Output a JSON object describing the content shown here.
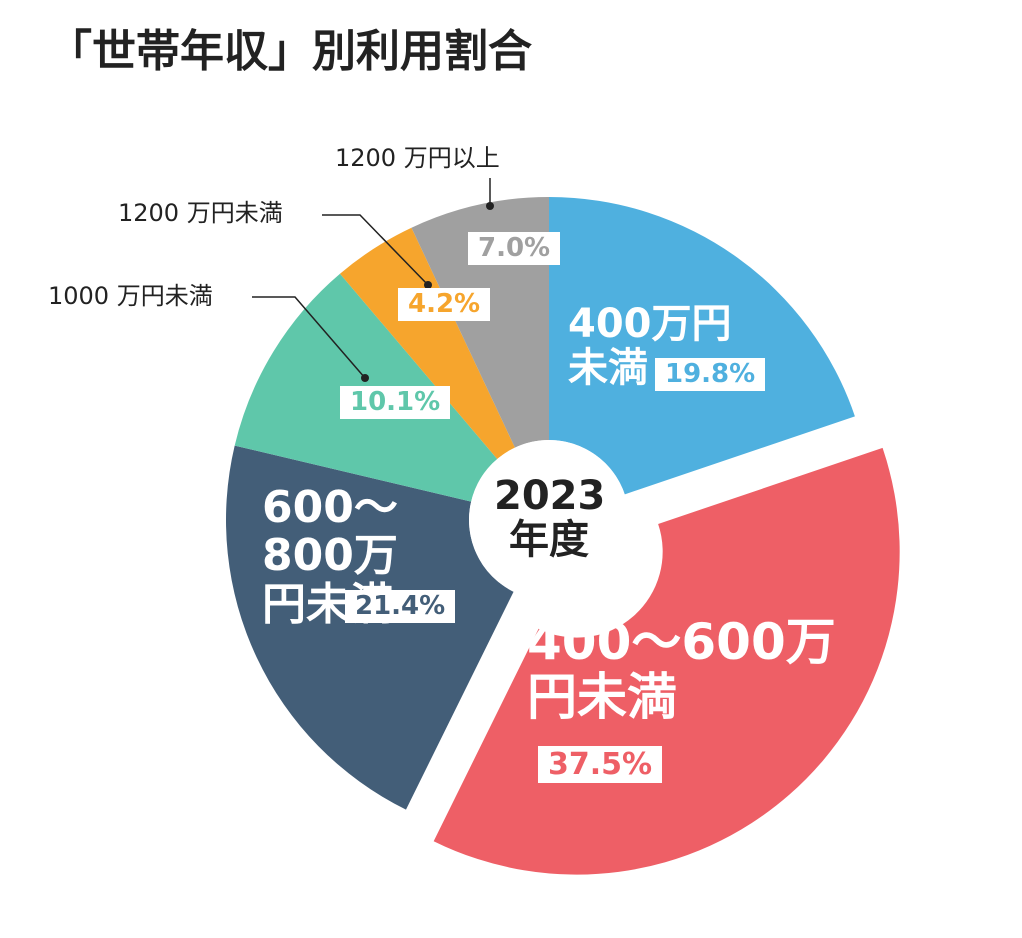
{
  "chart_data": {
    "type": "donut",
    "title": "「世帯年収」別利用割合",
    "center_label": "2023年度",
    "categories": [
      "400万円未満",
      "400〜600万円未満",
      "600〜800万円未満",
      "1000 万円未満",
      "1200 万円未満",
      "1200 万円以上"
    ],
    "values": [
      19.8,
      37.5,
      21.4,
      10.1,
      4.2,
      7.0
    ],
    "value_labels": [
      "19.8%",
      "37.5%",
      "21.4%",
      "10.1%",
      "4.2%",
      "7.0%"
    ],
    "colors": [
      "#4fb0df",
      "#ee5f66",
      "#435e78",
      "#5fc7aa",
      "#f6a52d",
      "#a0a0a0"
    ],
    "exploded": [
      false,
      true,
      false,
      false,
      false,
      false
    ]
  }
}
